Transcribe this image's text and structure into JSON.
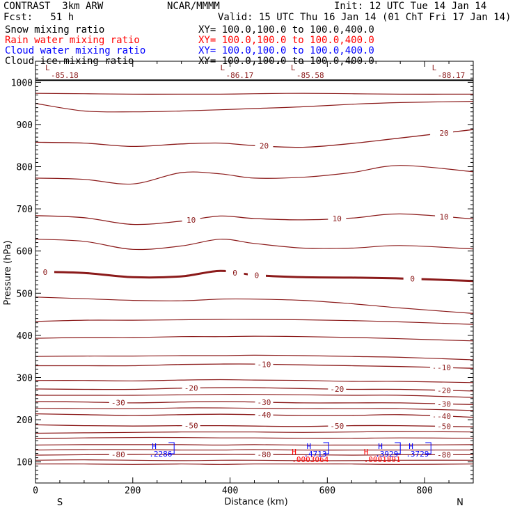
{
  "header": {
    "title": "CONTRAST  3km ARW",
    "center": "NCAR/MMMM",
    "init": "Init: 12 UTC Tue 14 Jan 14",
    "fcst": "Fcst:   51 h",
    "valid": "Valid: 15 UTC Thu 16 Jan 14 (01 ChT Fri 17 Jan 14)"
  },
  "legend": [
    {
      "name": "Snow mixing ratio",
      "range": "XY= 100.0,100.0 to 100.0,400.0",
      "color": "#000000"
    },
    {
      "name": "Rain water mixing ratio",
      "range": "XY= 100.0,100.0 to 100.0,400.0",
      "color": "#ff0000"
    },
    {
      "name": "Cloud water mixing ratio",
      "range": "XY= 100.0,100.0 to 100.0,400.0",
      "color": "#0000ff"
    },
    {
      "name": "Cloud ice mixing ratio",
      "range": "XY= 100.0,100.0 to 100.0,400.0",
      "color": "#000000"
    }
  ],
  "chart_data": {
    "type": "contour-cross-section",
    "xlabel": "Distance (km)",
    "ylabel": "Pressure (hPa)",
    "xlim": [
      0,
      900
    ],
    "ylim": [
      1050,
      50
    ],
    "x_ticks": [
      0,
      200,
      400,
      600,
      800
    ],
    "y_ticks": [
      100,
      200,
      300,
      400,
      500,
      600,
      700,
      800,
      900,
      1000
    ],
    "x_end_labels": {
      "left": "S",
      "right": "N"
    },
    "contour_color": "#8b1a1a",
    "xs": [
      0,
      100,
      200,
      300,
      380,
      450,
      550,
      650,
      750,
      900
    ],
    "isotherms": [
      {
        "level": "-80",
        "p": [
          116,
          117,
          118,
          118,
          118,
          118,
          117,
          116,
          117,
          117
        ]
      },
      {
        "level": "-50",
        "p": [
          188,
          186,
          185,
          186,
          186,
          185,
          184,
          186,
          186,
          183
        ]
      },
      {
        "level": "-40",
        "p": [
          214,
          212,
          210,
          212,
          213,
          212,
          210,
          210,
          212,
          206
        ]
      },
      {
        "level": "-30",
        "p": [
          243,
          242,
          240,
          242,
          243,
          242,
          240,
          240,
          240,
          236
        ]
      },
      {
        "level": "-20",
        "p": [
          273,
          272,
          272,
          275,
          276,
          276,
          274,
          272,
          272,
          268
        ]
      },
      {
        "level": "-10",
        "p": [
          328,
          328,
          328,
          331,
          332,
          332,
          330,
          328,
          326,
          322
        ]
      },
      {
        "level": "0",
        "p": [
          551,
          548,
          538,
          540,
          553,
          543,
          538,
          537,
          535,
          529
        ]
      },
      {
        "level": "10",
        "p": [
          684,
          679,
          663,
          671,
          683,
          677,
          674,
          678,
          688,
          676
        ]
      },
      {
        "level": "20",
        "p": [
          858,
          856,
          848,
          854,
          856,
          850,
          846,
          855,
          868,
          888
        ]
      }
    ],
    "other_contours": [
      {
        "p": [
          95,
          95,
          94,
          95,
          94,
          95,
          95,
          95,
          94,
          95
        ]
      },
      {
        "p": [
          104,
          105,
          104,
          103,
          104,
          104,
          103,
          103,
          104,
          104
        ]
      },
      {
        "p": [
          128,
          129,
          129,
          128,
          128,
          129,
          128,
          128,
          128,
          128
        ]
      },
      {
        "p": [
          140,
          141,
          141,
          141,
          140,
          141,
          140,
          140,
          140,
          141
        ]
      },
      {
        "p": [
          155,
          157,
          158,
          158,
          157,
          157,
          156,
          156,
          157,
          156
        ]
      },
      {
        "p": [
          168,
          169,
          170,
          171,
          171,
          171,
          170,
          171,
          172,
          171
        ]
      },
      {
        "p": [
          227,
          226,
          226,
          228,
          228,
          227,
          226,
          226,
          226,
          222
        ]
      },
      {
        "p": [
          258,
          258,
          258,
          259,
          260,
          260,
          259,
          258,
          258,
          253
        ]
      },
      {
        "p": [
          293,
          293,
          292,
          294,
          295,
          294,
          293,
          291,
          291,
          288
        ]
      },
      {
        "p": [
          350,
          351,
          351,
          352,
          352,
          353,
          352,
          350,
          348,
          342
        ]
      },
      {
        "p": [
          393,
          395,
          395,
          397,
          397,
          398,
          397,
          395,
          392,
          387
        ]
      },
      {
        "p": [
          433,
          436,
          436,
          437,
          438,
          438,
          437,
          435,
          432,
          426
        ]
      },
      {
        "p": [
          491,
          487,
          483,
          482,
          486,
          486,
          483,
          475,
          465,
          452
        ]
      },
      {
        "p": [
          628,
          623,
          604,
          612,
          628,
          618,
          607,
          607,
          613,
          605
        ]
      },
      {
        "p": [
          773,
          770,
          759,
          786,
          783,
          773,
          775,
          786,
          803,
          788
        ]
      },
      {
        "p": [
          950,
          932,
          930,
          932,
          935,
          938,
          942,
          948,
          952,
          955
        ]
      },
      {
        "p": [
          974,
          973,
          972,
          972,
          972,
          973,
          974,
          973,
          972,
          972
        ]
      }
    ],
    "min_labels": [
      {
        "x": 40,
        "value": "-85.18"
      },
      {
        "x": 400,
        "value": "-86.17"
      },
      {
        "x": 545,
        "value": "-85.58"
      },
      {
        "x": 835,
        "value": "-88.17"
      }
    ],
    "cloud_water_labels": [
      {
        "x": 265,
        "value": ".2286"
      },
      {
        "x": 583,
        "value": ".4713"
      },
      {
        "x": 730,
        "value": ".3929"
      },
      {
        "x": 793,
        "value": ".3729"
      }
    ],
    "rain_labels": [
      {
        "x": 577,
        "value": ".0003064"
      },
      {
        "x": 725,
        "value": ".0001891"
      }
    ],
    "max_marker": "H",
    "min_marker": "L"
  }
}
